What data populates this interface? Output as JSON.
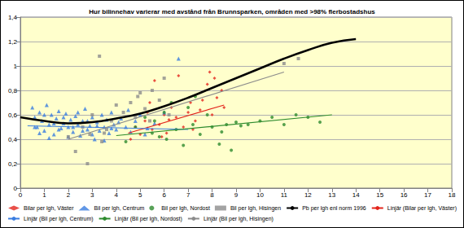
{
  "chart_data": {
    "type": "scatter",
    "title": "Hur bilinnehav varierar med avstånd från Brunnsparken, områden med >98% flerbostadshus",
    "xlim": [
      0,
      18
    ],
    "xticks": [
      0,
      1,
      2,
      3,
      4,
      5,
      6,
      7,
      8,
      9,
      10,
      11,
      12,
      13,
      14,
      15,
      16,
      17,
      18
    ],
    "ylim": [
      0,
      1.4
    ],
    "yticks": [
      0,
      {
        "value": 0.2,
        "label": "0,2"
      },
      {
        "value": 0.4,
        "label": "0,4"
      },
      {
        "value": 0.6,
        "label": "0,6"
      },
      {
        "value": 0.8,
        "label": "0,8"
      },
      1,
      {
        "value": 1.2,
        "label": "1,2"
      },
      {
        "value": 1.4,
        "label": "1,4"
      }
    ],
    "grid": true,
    "legend": "bottom",
    "series": [
      {
        "name": "Bilar per lgh, Väster",
        "type": "scatter",
        "color": "#e3241b",
        "marker": "diamond",
        "x": [
          4.6,
          4.8,
          5.0,
          5.2,
          5.3,
          5.5,
          5.6,
          5.8,
          6.0,
          6.1,
          6.3,
          6.5,
          6.6,
          6.8,
          7.0,
          7.1,
          7.3,
          7.5,
          7.6,
          7.8,
          8.0,
          8.1,
          8.2,
          8.4,
          8.5,
          5.4,
          6.2,
          7.2,
          7.9,
          5.9
        ],
        "values": [
          0.4,
          0.5,
          0.44,
          0.55,
          0.62,
          0.48,
          0.88,
          0.52,
          0.6,
          0.45,
          0.66,
          0.58,
          0.92,
          0.5,
          0.62,
          0.7,
          0.55,
          0.64,
          0.72,
          0.85,
          0.6,
          0.9,
          0.74,
          0.8,
          0.66,
          0.7,
          0.56,
          0.48,
          0.95,
          0.42
        ]
      },
      {
        "name": "Bil per lgh, Centrum",
        "type": "scatter",
        "color": "#3a7de0",
        "marker": "triangle",
        "x": [
          0.5,
          0.6,
          0.7,
          0.8,
          0.9,
          1.0,
          1.1,
          1.2,
          1.3,
          1.4,
          1.5,
          1.6,
          1.7,
          1.8,
          1.9,
          2.0,
          2.1,
          2.2,
          2.3,
          2.4,
          2.5,
          2.6,
          2.7,
          2.8,
          2.9,
          3.0,
          3.1,
          3.2,
          3.3,
          3.4,
          3.5,
          3.6,
          3.7,
          3.8,
          3.9,
          4.0,
          4.2,
          4.4,
          4.6,
          4.8,
          5.0,
          5.3,
          5.6,
          6.0,
          6.6,
          0.6,
          0.8,
          1.0,
          1.2,
          1.4,
          1.6,
          1.8,
          2.0,
          2.2,
          2.4,
          2.6,
          2.8,
          3.0,
          3.2,
          3.5,
          3.8,
          4.1,
          4.5,
          5.2
        ],
        "values": [
          0.66,
          0.58,
          0.5,
          0.62,
          0.55,
          0.47,
          0.68,
          0.52,
          0.6,
          0.44,
          0.57,
          0.63,
          0.49,
          0.53,
          0.61,
          0.5,
          0.56,
          0.46,
          0.59,
          0.52,
          0.43,
          0.55,
          0.65,
          0.48,
          0.51,
          0.58,
          0.4,
          0.54,
          0.47,
          0.6,
          0.5,
          0.56,
          0.45,
          0.62,
          0.52,
          0.48,
          0.57,
          0.5,
          0.46,
          0.55,
          0.6,
          0.49,
          0.53,
          0.62,
          1.06,
          0.5,
          0.45,
          0.6,
          0.41,
          0.53,
          0.48,
          0.58,
          0.42,
          0.5,
          0.62,
          0.47,
          0.55,
          0.44,
          0.51,
          0.39,
          0.49,
          0.54,
          0.64,
          0.44
        ]
      },
      {
        "name": "Bil per lgh, Nordost",
        "type": "scatter",
        "color": "#2e8b2e",
        "marker": "circle",
        "x": [
          4.4,
          4.8,
          5.2,
          5.5,
          5.8,
          6.0,
          6.3,
          6.5,
          6.8,
          7.0,
          7.2,
          7.5,
          7.8,
          8.0,
          8.3,
          8.6,
          8.8,
          9.0,
          9.2,
          9.5,
          10.0,
          10.5,
          11.0,
          11.5,
          12.0,
          12.5,
          7.3,
          6.1,
          5.6,
          8.4
        ],
        "values": [
          0.38,
          0.5,
          0.58,
          0.45,
          0.42,
          0.62,
          0.7,
          0.48,
          0.35,
          0.66,
          0.52,
          0.44,
          0.6,
          0.5,
          0.36,
          0.52,
          0.31,
          0.54,
          0.51,
          0.52,
          0.55,
          0.58,
          0.52,
          0.6,
          0.58,
          0.54,
          0.75,
          0.4,
          0.55,
          0.46
        ]
      },
      {
        "name": "Bil per lgh, Hisingen",
        "type": "scatter",
        "color": "#8c8c8c",
        "marker": "square",
        "x": [
          2.0,
          2.3,
          2.6,
          2.8,
          3.0,
          3.3,
          3.5,
          3.8,
          4.0,
          4.3,
          4.6,
          4.9,
          5.2,
          5.5,
          5.8,
          6.2,
          3.4,
          2.9,
          4.8,
          5.0,
          5.4,
          11.0,
          11.6,
          6.0,
          3.6
        ],
        "values": [
          0.42,
          0.3,
          0.5,
          0.2,
          0.6,
          1.08,
          0.45,
          0.55,
          0.68,
          0.62,
          0.7,
          0.75,
          0.65,
          0.8,
          0.72,
          0.6,
          0.38,
          0.44,
          0.58,
          0.78,
          0.55,
          1.02,
          1.06,
          0.9,
          0.48
        ]
      },
      {
        "name": "Pb per lgh enl norm 1996",
        "type": "line",
        "color": "#000000",
        "line_style": "thick",
        "x": [
          0,
          1,
          2,
          3,
          4,
          5,
          6,
          7,
          8,
          9,
          10,
          11,
          12,
          13,
          14
        ],
        "values": [
          0.58,
          0.55,
          0.53,
          0.54,
          0.57,
          0.61,
          0.67,
          0.74,
          0.82,
          0.9,
          0.98,
          1.06,
          1.13,
          1.19,
          1.22
        ]
      },
      {
        "name": "Linjär (Bilar per lgh, Väster)",
        "type": "line",
        "color": "#e3241b",
        "line_style": "solid",
        "x": [
          4.5,
          8.5
        ],
        "values": [
          0.45,
          0.68
        ]
      },
      {
        "name": "Linjär (Bil per lgh, Centrum)",
        "type": "line",
        "color": "#3a7de0",
        "line_style": "solid",
        "x": [
          0.3,
          7.0
        ],
        "values": [
          0.51,
          0.48
        ]
      },
      {
        "name": "Linjär (Bil per lgh, Nordost)",
        "type": "line",
        "color": "#2e8b2e",
        "line_style": "solid",
        "x": [
          4.0,
          13.0
        ],
        "values": [
          0.43,
          0.6
        ]
      },
      {
        "name": "Linjär (Bil per lgh, Hisingen)",
        "type": "line",
        "color": "#8c8c8c",
        "line_style": "solid",
        "x": [
          2.0,
          11.0
        ],
        "values": [
          0.4,
          0.95
        ]
      }
    ]
  }
}
